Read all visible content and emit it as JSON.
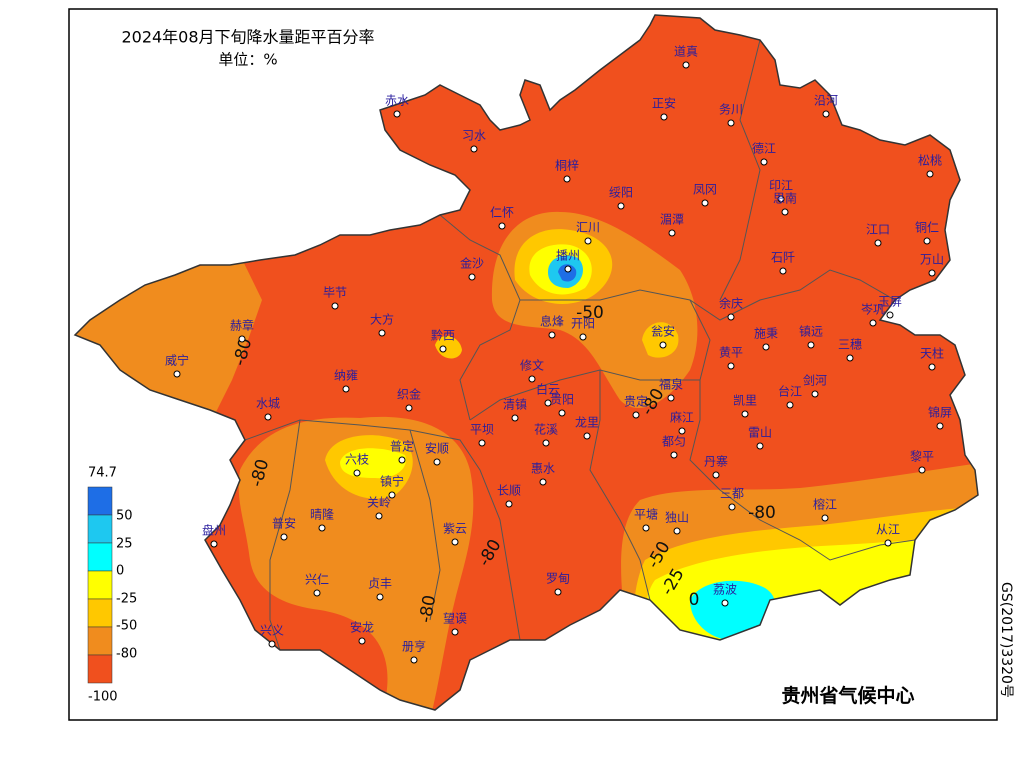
{
  "title": "2024年08月下旬降水量距平百分率",
  "unit": "单位：%",
  "legend": {
    "labels": [
      "74.7",
      "50",
      "25",
      "0",
      "-25",
      "-50",
      "-80",
      "-100"
    ]
  },
  "contour_labels": [
    "-80",
    "-50",
    "-80",
    "-80",
    "-80",
    "-80",
    "-80",
    "-50",
    "-25",
    "0"
  ],
  "stations": [
    "道真",
    "赤水",
    "习水",
    "正安",
    "务川",
    "沿河",
    "德江",
    "松桃",
    "桐梓",
    "绥阳",
    "凤冈",
    "印江",
    "思南",
    "仁怀",
    "湄潭",
    "汇川",
    "江口",
    "铜仁",
    "播州",
    "金沙",
    "石阡",
    "万山",
    "毕节",
    "大方",
    "黔西",
    "赫章",
    "息烽",
    "开阳",
    "余庆",
    "岑巩",
    "玉屏",
    "瓮安",
    "施秉",
    "镇远",
    "三穗",
    "黄平",
    "天柱",
    "威宁",
    "纳雍",
    "修文",
    "白云",
    "福泉",
    "剑河",
    "台江",
    "织金",
    "清镇",
    "贵阳",
    "贵定",
    "凯里",
    "水城",
    "锦屏",
    "麻江",
    "花溪",
    "龙里",
    "平坝",
    "雷山",
    "都匀",
    "普定",
    "安顺",
    "六枝",
    "黎平",
    "丹寨",
    "惠水",
    "镇宁",
    "关岭",
    "长顺",
    "三都",
    "平塘",
    "独山",
    "榕江",
    "晴隆",
    "普安",
    "盘州",
    "紫云",
    "从江",
    "兴仁",
    "贞丰",
    "罗甸",
    "荔波",
    "望谟",
    "兴义",
    "安龙",
    "册亨"
  ],
  "footer": "贵州省气候中心",
  "map_number": "GS(2017)3320号"
}
